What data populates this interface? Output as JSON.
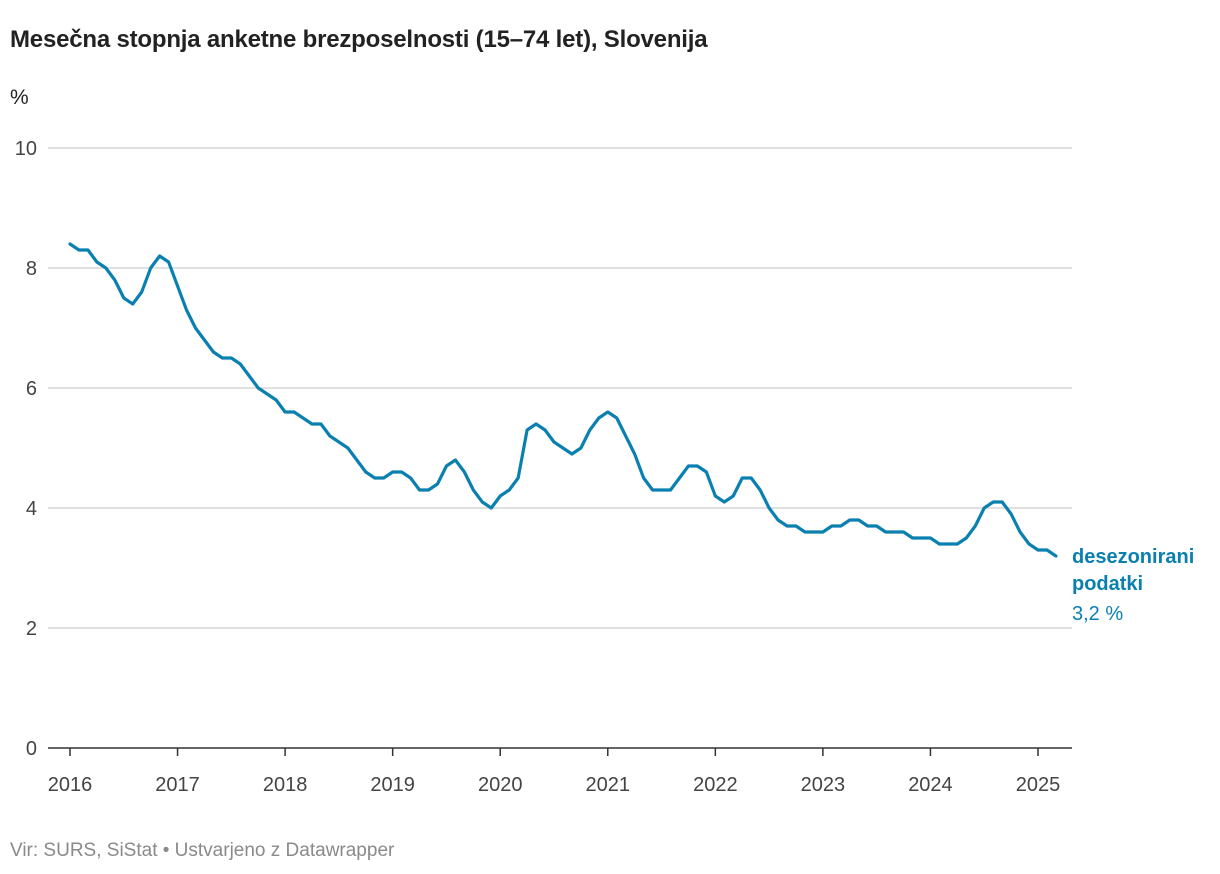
{
  "header": {
    "title": "Mesečna stopnja anketne brezposelnosti (15–74 let), Slovenija"
  },
  "footer": {
    "source": "Vir: SURS, SiStat • Ustvarjeno z Datawrapper"
  },
  "colors": {
    "series": "#0a80b0",
    "grid": "#d6d6d6",
    "axis": "#333333"
  },
  "chart_data": {
    "type": "line",
    "title": "Mesečna stopnja anketne brezposelnosti (15–74 let), Slovenija",
    "ylabel": "%",
    "xlabel": "",
    "ylim": [
      0,
      10
    ],
    "yticks": [
      0,
      2,
      4,
      6,
      8,
      10
    ],
    "xlim": [
      2016,
      2025.35
    ],
    "xticks": [
      "2016",
      "2017",
      "2018",
      "2019",
      "2020",
      "2021",
      "2022",
      "2023",
      "2024",
      "2025"
    ],
    "grid": true,
    "series": [
      {
        "name": "desezonirani podatki",
        "label_line1": "desezonirani",
        "label_line2": "podatki",
        "last_value_label": "3,2 %",
        "start": "2016-01",
        "values": [
          8.4,
          8.3,
          8.3,
          8.1,
          8.0,
          7.8,
          7.5,
          7.4,
          7.6,
          8.0,
          8.2,
          8.1,
          7.7,
          7.3,
          7.0,
          6.8,
          6.6,
          6.5,
          6.5,
          6.4,
          6.2,
          6.0,
          5.9,
          5.8,
          5.6,
          5.6,
          5.5,
          5.4,
          5.4,
          5.2,
          5.1,
          5.0,
          4.8,
          4.6,
          4.5,
          4.5,
          4.6,
          4.6,
          4.5,
          4.3,
          4.3,
          4.4,
          4.7,
          4.8,
          4.6,
          4.3,
          4.1,
          4.0,
          4.2,
          4.3,
          4.5,
          5.3,
          5.4,
          5.3,
          5.1,
          5.0,
          4.9,
          5.0,
          5.3,
          5.5,
          5.6,
          5.5,
          5.2,
          4.9,
          4.5,
          4.3,
          4.3,
          4.3,
          4.5,
          4.7,
          4.7,
          4.6,
          4.2,
          4.1,
          4.2,
          4.5,
          4.5,
          4.3,
          4.0,
          3.8,
          3.7,
          3.7,
          3.6,
          3.6,
          3.6,
          3.7,
          3.7,
          3.8,
          3.8,
          3.7,
          3.7,
          3.6,
          3.6,
          3.6,
          3.5,
          3.5,
          3.5,
          3.4,
          3.4,
          3.4,
          3.5,
          3.7,
          4.0,
          4.1,
          4.1,
          3.9,
          3.6,
          3.4,
          3.3,
          3.3,
          3.2
        ]
      }
    ]
  }
}
